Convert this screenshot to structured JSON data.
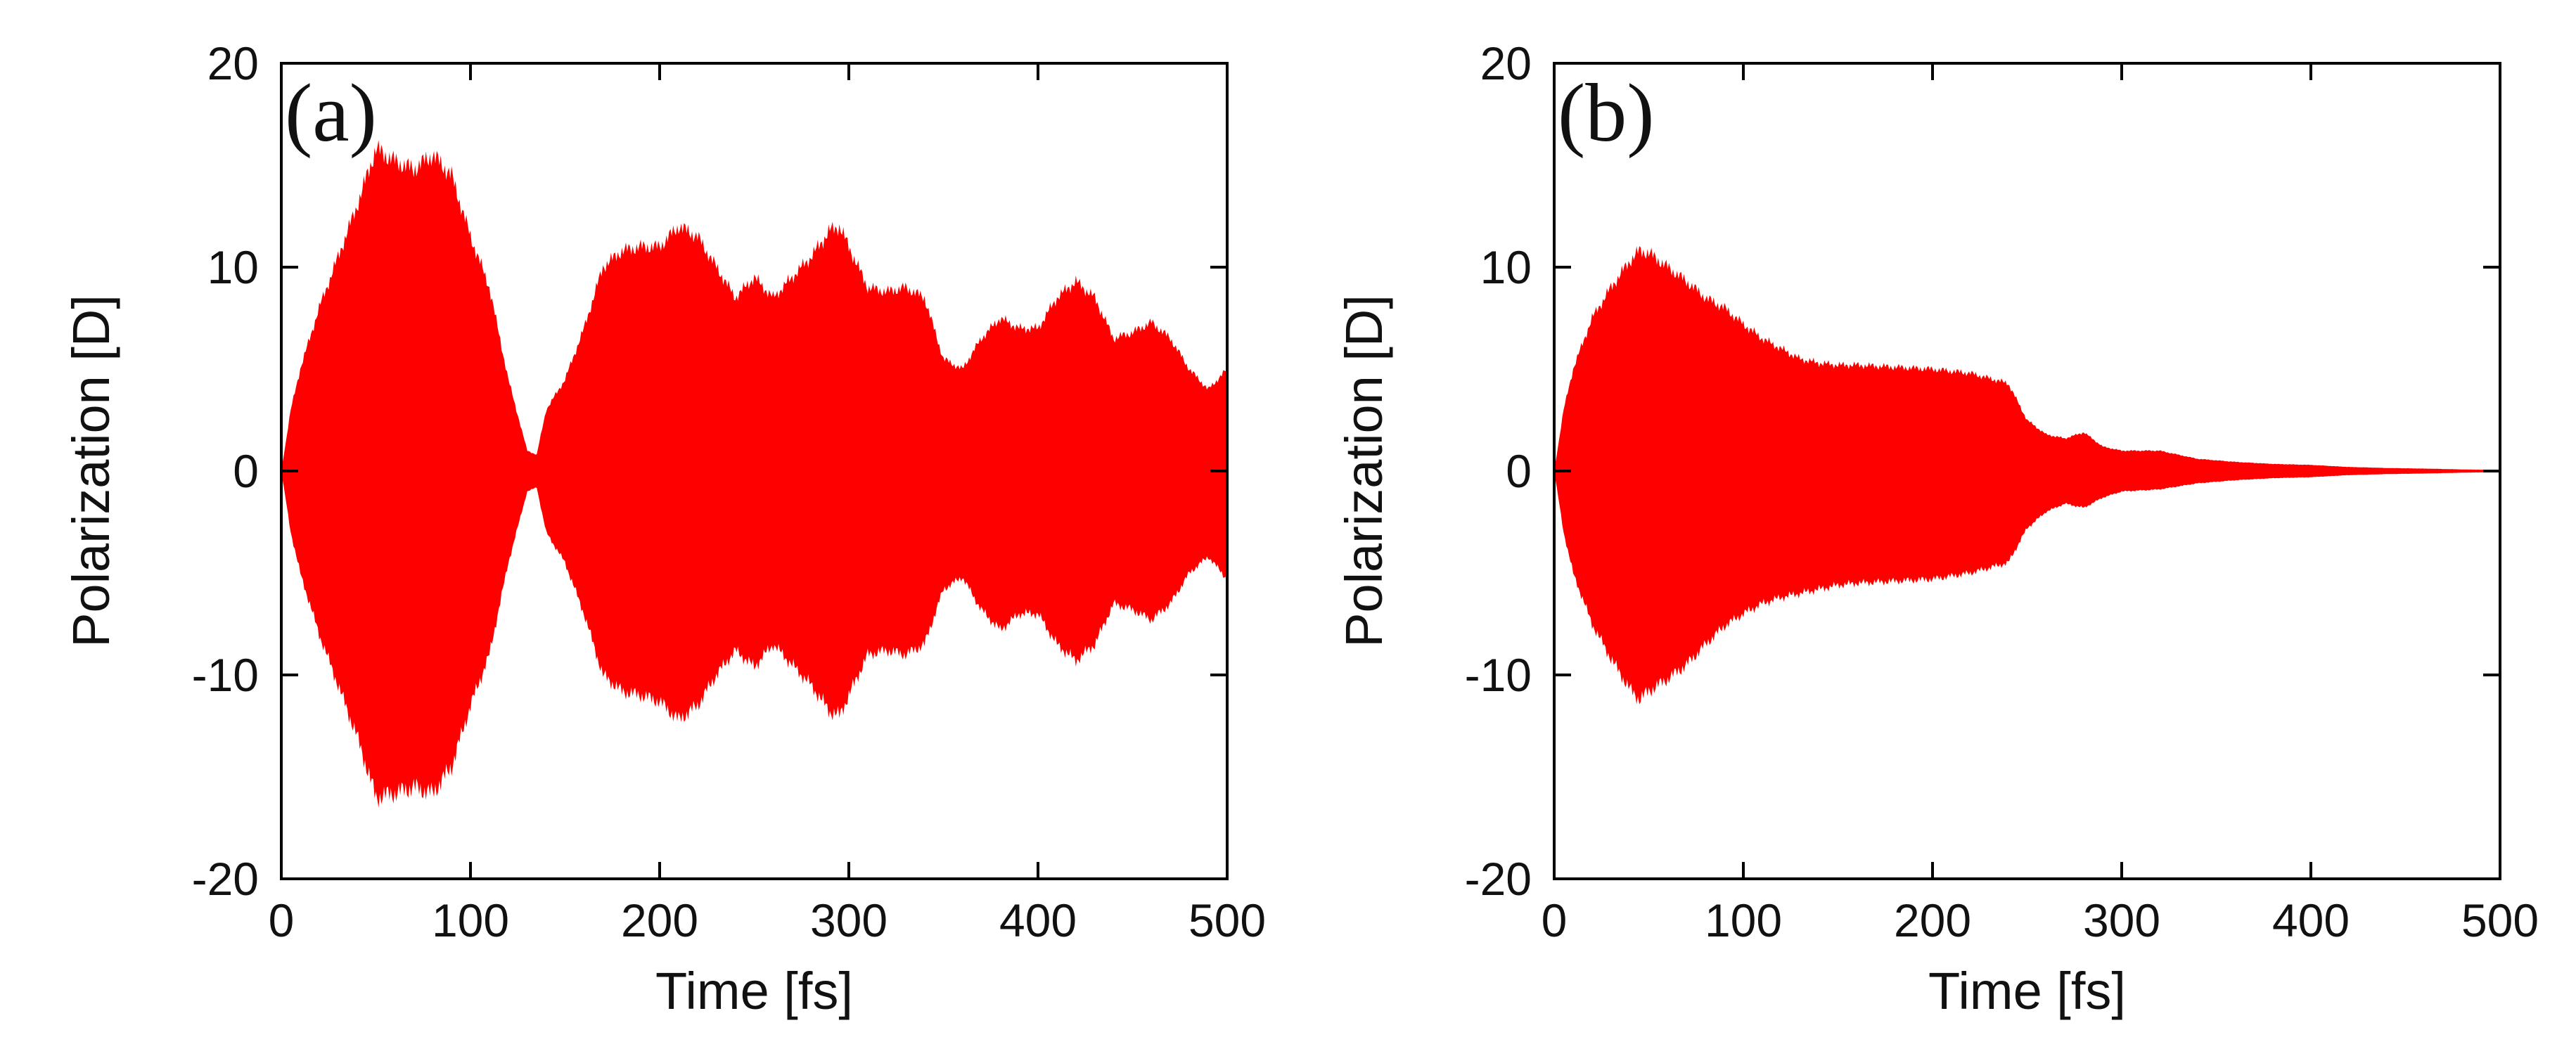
{
  "chart_data": [
    {
      "type": "area",
      "panel_label": "(a)",
      "title": "",
      "xlabel": "Time [fs]",
      "ylabel": "Polarization [D]",
      "xlim": [
        0,
        500
      ],
      "ylim": [
        -20,
        20
      ],
      "xticks": [
        0,
        100,
        200,
        300,
        400,
        500
      ],
      "yticks": [
        -20,
        -10,
        0,
        10,
        20
      ],
      "xtick_labels": [
        "0",
        "100",
        "200",
        "300",
        "400",
        "500"
      ],
      "ytick_labels": [
        "-20",
        "-10",
        "0",
        "10",
        "20"
      ],
      "grid": false,
      "series": [
        {
          "name": "polarization envelope",
          "color": "#ff0000",
          "x": [
            0,
            5,
            10,
            20,
            30,
            40,
            50,
            60,
            70,
            80,
            90,
            100,
            110,
            120,
            130,
            135,
            140,
            150,
            160,
            170,
            180,
            190,
            200,
            210,
            220,
            230,
            240,
            250,
            260,
            270,
            280,
            290,
            295,
            300,
            310,
            320,
            330,
            340,
            350,
            360,
            370,
            380,
            390,
            400,
            410,
            420,
            430,
            440,
            450,
            460,
            470,
            480,
            490,
            500
          ],
          "upper": [
            0,
            3,
            5,
            8,
            10.5,
            13,
            15.8,
            15.2,
            14.8,
            15.5,
            14.5,
            11.5,
            9,
            4.5,
            1,
            0.8,
            3,
            4.5,
            7,
            10,
            10.8,
            11,
            11,
            12,
            11.5,
            10,
            8.5,
            9.5,
            8.5,
            9.5,
            10.5,
            11.8,
            12,
            11,
            9,
            8.8,
            9,
            8.5,
            5.5,
            5,
            6.5,
            7.5,
            7,
            7,
            8.5,
            9.3,
            8.5,
            6.5,
            6.8,
            7.3,
            6.5,
            5,
            4,
            5
          ],
          "lower": [
            0,
            -3,
            -5,
            -8,
            -10.5,
            -13,
            -16,
            -15.8,
            -15.5,
            -15.8,
            -14.5,
            -11.5,
            -9,
            -4.5,
            -1,
            -0.8,
            -3,
            -4.5,
            -7,
            -10,
            -10.8,
            -11,
            -11.3,
            -12.2,
            -11.5,
            -10,
            -8.8,
            -9.6,
            -8.5,
            -9.5,
            -10.5,
            -11.8,
            -12,
            -11,
            -9,
            -8.8,
            -9,
            -8.5,
            -5.8,
            -5.2,
            -6.8,
            -7.8,
            -7,
            -7,
            -8.5,
            -9.3,
            -8.5,
            -6.5,
            -6.8,
            -7.3,
            -6.5,
            -5,
            -4.2,
            -5.3
          ]
        }
      ]
    },
    {
      "type": "area",
      "panel_label": "(b)",
      "title": "",
      "xlabel": "Time [fs]",
      "ylabel": "Polarization [D]",
      "xlim": [
        0,
        500
      ],
      "ylim": [
        -20,
        20
      ],
      "xticks": [
        0,
        100,
        200,
        300,
        400,
        500
      ],
      "yticks": [
        -20,
        -10,
        0,
        10,
        20
      ],
      "xtick_labels": [
        "0",
        "100",
        "200",
        "300",
        "400",
        "500"
      ],
      "ytick_labels": [
        "-20",
        "-10",
        "0",
        "10",
        "20"
      ],
      "grid": false,
      "series": [
        {
          "name": "polarization envelope",
          "color": "#ff0000",
          "x": [
            0,
            5,
            10,
            20,
            30,
            40,
            45,
            50,
            60,
            70,
            80,
            90,
            100,
            110,
            120,
            130,
            140,
            150,
            160,
            180,
            200,
            220,
            240,
            250,
            260,
            270,
            280,
            290,
            300,
            320,
            340,
            360,
            380,
            400,
            420,
            440,
            460,
            480,
            500
          ],
          "upper": [
            0,
            3,
            5,
            7.5,
            9,
            10.3,
            10.8,
            10.7,
            10,
            9.3,
            8.5,
            8,
            7.2,
            6.5,
            6,
            5.5,
            5.3,
            5.2,
            5.2,
            5.1,
            5,
            4.8,
            4.3,
            2.5,
            1.8,
            1.6,
            1.9,
            1.2,
            1.0,
            1.0,
            0.6,
            0.45,
            0.35,
            0.3,
            0.2,
            0.15,
            0.12,
            0.08,
            0.05
          ],
          "lower": [
            0,
            -3,
            -5,
            -7.5,
            -9.2,
            -10.7,
            -11.2,
            -10.8,
            -10.2,
            -9.5,
            -8.5,
            -7.6,
            -7,
            -6.5,
            -6.2,
            -6,
            -5.8,
            -5.6,
            -5.5,
            -5.4,
            -5.3,
            -5.0,
            -4.5,
            -2.8,
            -2.0,
            -1.6,
            -1.8,
            -1.3,
            -1.0,
            -0.9,
            -0.6,
            -0.45,
            -0.35,
            -0.3,
            -0.2,
            -0.15,
            -0.12,
            -0.08,
            -0.05
          ]
        }
      ]
    }
  ]
}
